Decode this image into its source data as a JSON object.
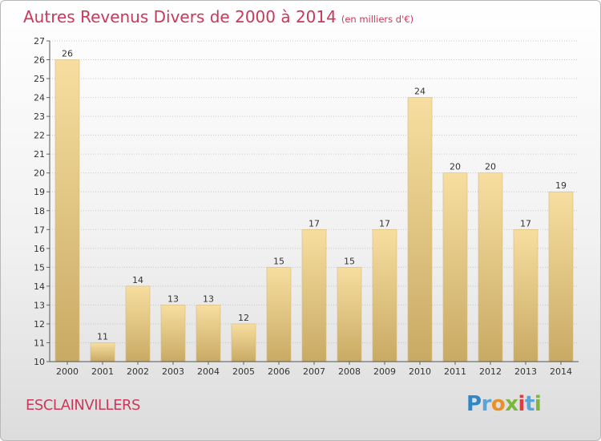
{
  "title": {
    "main": "Autres Revenus Divers de 2000 à 2014",
    "unit": "(en milliers d'€)"
  },
  "place_name": "ESCLAINVILLERS",
  "brand": {
    "letters": [
      "P",
      "r",
      "o",
      "x",
      "i",
      "t",
      "i"
    ],
    "colors": [
      "#2f86c8",
      "#5aa5d8",
      "#e8912a",
      "#7ab83a",
      "#e23b3b",
      "#5aa5d8",
      "#7ab83a"
    ]
  },
  "colors": {
    "bar_light": "#f7dea0",
    "bar_dark": "#c9aa64",
    "title": "#c8395a",
    "grid": "#c7c7c7"
  },
  "chart_data": {
    "type": "bar",
    "title": "Autres Revenus Divers de 2000 à 2014",
    "subtitle": "(en milliers d'€)",
    "xlabel": "",
    "ylabel": "",
    "categories": [
      "2000",
      "2001",
      "2002",
      "2003",
      "2004",
      "2005",
      "2006",
      "2007",
      "2008",
      "2009",
      "2010",
      "2011",
      "2012",
      "2013",
      "2014"
    ],
    "values": [
      26,
      11,
      14,
      13,
      13,
      12,
      15,
      17,
      15,
      17,
      24,
      20,
      20,
      17,
      19
    ],
    "ylim": [
      10,
      27
    ],
    "yticks": [
      10,
      11,
      12,
      13,
      14,
      15,
      16,
      17,
      18,
      19,
      20,
      21,
      22,
      23,
      24,
      25,
      26,
      27
    ],
    "grid": "horizontal dotted",
    "data_labels": true,
    "legend": "none"
  }
}
